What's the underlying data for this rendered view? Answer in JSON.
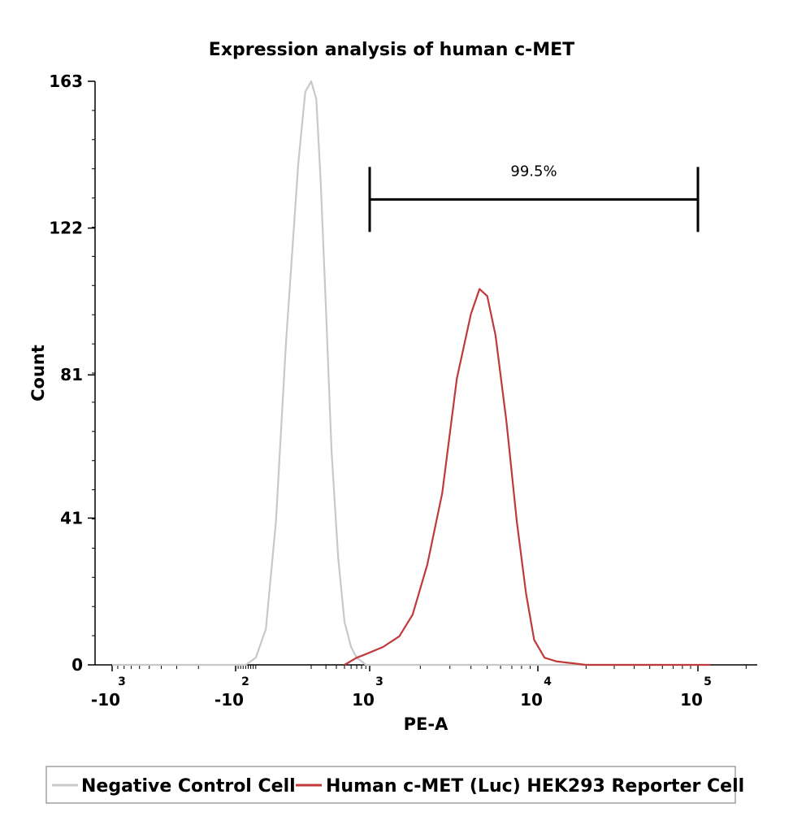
{
  "chart_data": {
    "type": "line",
    "title": "Expression analysis of human c-MET",
    "xlabel": "PE-A",
    "ylabel": "Count",
    "xscale": "biexponential",
    "y_ticks": [
      "163",
      "122",
      "81",
      "41",
      "0"
    ],
    "ylim": [
      0,
      163
    ],
    "x_ticks": [
      {
        "base": "-10",
        "exp": "3",
        "value": -1000
      },
      {
        "base": "-10",
        "exp": "2",
        "value": -100
      },
      {
        "base": "10",
        "exp": "3",
        "value": 1000
      },
      {
        "base": "10",
        "exp": "4",
        "value": 10000
      },
      {
        "base": "10",
        "exp": "5",
        "value": 100000
      }
    ],
    "series": [
      {
        "name": "Negative Control Cell",
        "color": "#c8c8c8",
        "points": [
          [
            -1000,
            0
          ],
          [
            -150,
            0
          ],
          [
            -60,
            0
          ],
          [
            -20,
            2
          ],
          [
            20,
            10
          ],
          [
            60,
            40
          ],
          [
            100,
            90
          ],
          [
            140,
            140
          ],
          [
            170,
            160
          ],
          [
            200,
            163
          ],
          [
            230,
            158
          ],
          [
            260,
            135
          ],
          [
            300,
            100
          ],
          [
            350,
            60
          ],
          [
            420,
            30
          ],
          [
            500,
            12
          ],
          [
            600,
            5
          ],
          [
            700,
            2
          ],
          [
            800,
            1
          ],
          [
            900,
            0
          ],
          [
            1200,
            0
          ],
          [
            3000,
            0
          ],
          [
            20000,
            0
          ],
          [
            60000,
            0
          ]
        ]
      },
      {
        "name": "Human c-MET (Luc) HEK293 Reporter Cell",
        "color": "#c0393b",
        "points": [
          [
            500,
            0
          ],
          [
            700,
            2
          ],
          [
            900,
            3
          ],
          [
            1200,
            5
          ],
          [
            1500,
            8
          ],
          [
            1800,
            14
          ],
          [
            2200,
            28
          ],
          [
            2700,
            48
          ],
          [
            3300,
            80
          ],
          [
            4000,
            98
          ],
          [
            4500,
            105
          ],
          [
            5000,
            103
          ],
          [
            5600,
            92
          ],
          [
            6500,
            68
          ],
          [
            7500,
            40
          ],
          [
            8500,
            20
          ],
          [
            9500,
            7
          ],
          [
            11000,
            2
          ],
          [
            13000,
            1
          ],
          [
            20000,
            0
          ],
          [
            60000,
            0
          ],
          [
            120000,
            0
          ]
        ]
      }
    ],
    "gate": {
      "label": "99.5%",
      "from": 1000,
      "to": 100000,
      "y": 130
    },
    "legend_position": "bottom"
  }
}
